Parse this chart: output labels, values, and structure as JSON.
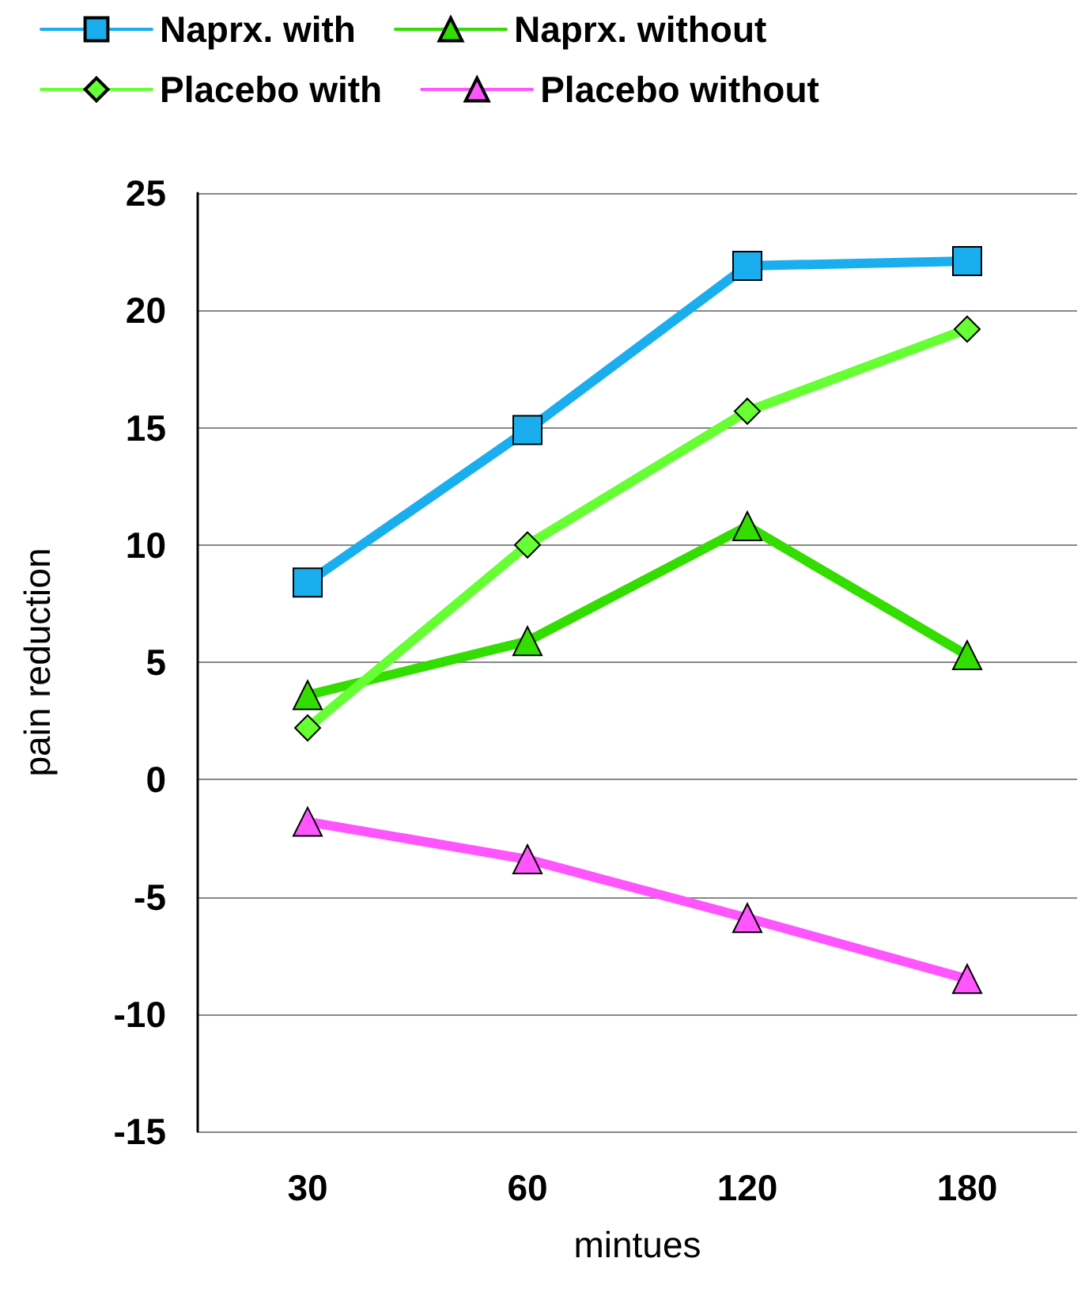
{
  "chart_data": {
    "type": "line",
    "xlabel": "mintues",
    "ylabel": "pain reduction",
    "categories": [
      "30",
      "60",
      "120",
      "180"
    ],
    "series": [
      {
        "name": "Naprx. with",
        "color": "#1aaeee",
        "marker": "square",
        "values": [
          8.4,
          14.9,
          21.9,
          22.1
        ]
      },
      {
        "name": "Naprx. without",
        "color": "#33dd00",
        "marker": "triangle",
        "values": [
          3.6,
          5.9,
          10.8,
          5.3
        ]
      },
      {
        "name": "Placebo with",
        "color": "#66ff33",
        "marker": "diamond",
        "values": [
          2.2,
          10.0,
          15.7,
          19.2
        ]
      },
      {
        "name": "Placebo without",
        "color": "#ff55ff",
        "marker": "triangle",
        "values": [
          -1.8,
          -3.4,
          -5.9,
          -8.5
        ]
      }
    ],
    "ylim": [
      -15,
      25
    ],
    "yticks": [
      -15,
      -10,
      -5,
      0,
      5,
      10,
      15,
      20,
      25
    ],
    "grid": "y",
    "legend": "top",
    "line_style": "solid"
  }
}
